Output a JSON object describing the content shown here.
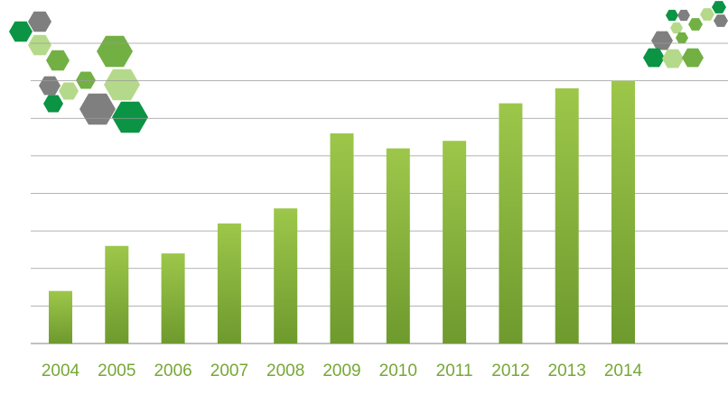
{
  "colors": {
    "bar_top": "#9dc74a",
    "bar_bottom": "#6e9a2e",
    "tick_label": "#76a736",
    "gridline": "#9a9a9a",
    "hex_dark_green": "#0a9444",
    "hex_mid_green": "#72b043",
    "hex_light_green": "#b5d98a",
    "hex_gray": "#7f7f7f"
  },
  "decorations": {
    "left": "hexagon-cluster",
    "right": "hexagon-cluster"
  },
  "chart_data": {
    "type": "bar",
    "title": "",
    "xlabel": "",
    "ylabel": "",
    "categories": [
      "2004",
      "2005",
      "2006",
      "2007",
      "2008",
      "2009",
      "2010",
      "2011",
      "2012",
      "2013",
      "2014"
    ],
    "values": [
      1.4,
      2.6,
      2.4,
      3.2,
      3.6,
      5.6,
      5.2,
      5.4,
      6.4,
      6.8,
      7.0
    ],
    "ylim": [
      0,
      8
    ],
    "grid": true,
    "y_tick_labels_shown": false,
    "legend": "none"
  }
}
